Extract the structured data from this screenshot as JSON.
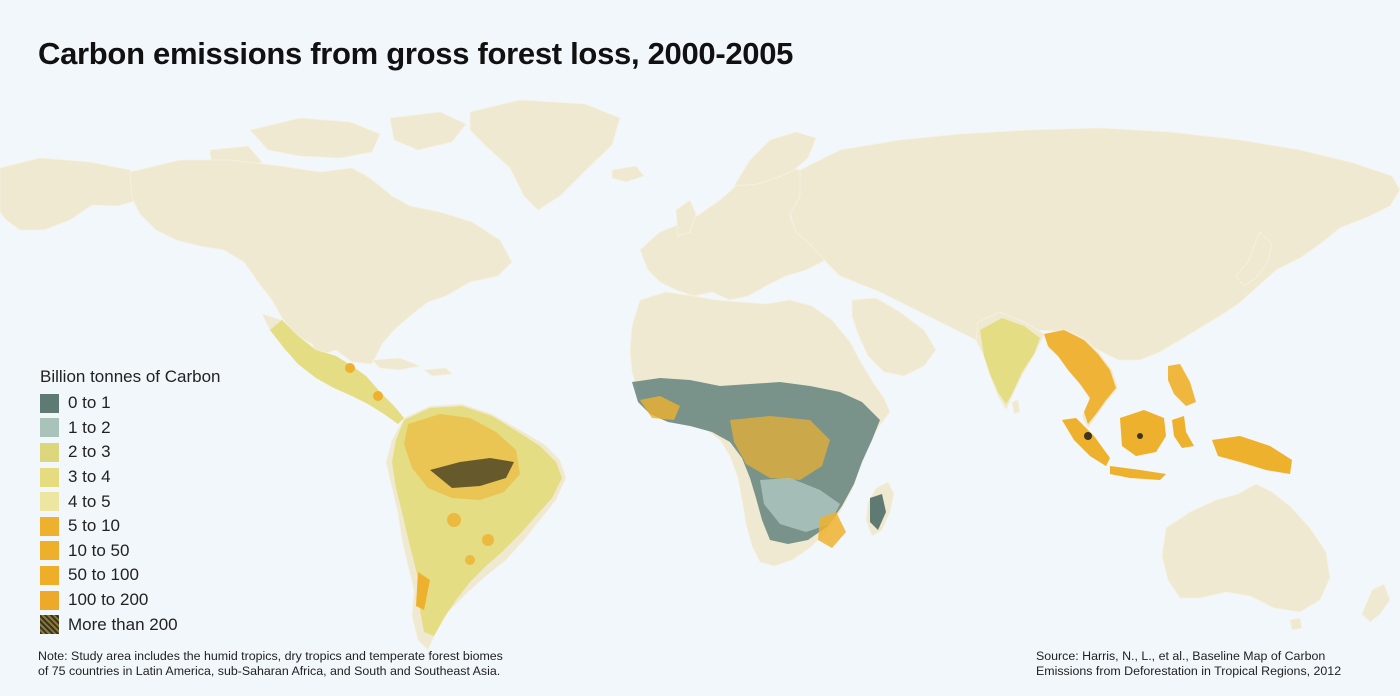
{
  "title": "Carbon emissions from gross forest loss, 2000-2005",
  "legend": {
    "title": "Billion tonnes of Carbon",
    "items": [
      {
        "label": "0 to 1",
        "color": "#5f7a72"
      },
      {
        "label": "1 to 2",
        "color": "#a9c3bb"
      },
      {
        "label": "2 to 3",
        "color": "#dcd67c"
      },
      {
        "label": "3 to 4",
        "color": "#e4dc7e"
      },
      {
        "label": "4 to 5",
        "color": "#ede6a2"
      },
      {
        "label": "5 to 10",
        "color": "#eeb12e"
      },
      {
        "label": "10 to 50",
        "color": "#eeaf2a"
      },
      {
        "label": "50 to 100",
        "color": "#eeae28"
      },
      {
        "label": "100 to 200",
        "color": "#eca92a"
      },
      {
        "label": "More than 200",
        "color": "#3a3520"
      }
    ]
  },
  "note": {
    "line1": "Note: Study area includes the humid tropics, dry tropics and temperate forest biomes",
    "line2": "of 75 countries in Latin America, sub-Saharan Africa, and South and Southeast Asia."
  },
  "source": {
    "line1": "Source: Harris, N., L., et al., Baseline Map of Carbon",
    "line2": "Emissions from Deforestation in Tropical Regions, 2012"
  },
  "colors": {
    "background": "#f2f7fb",
    "land": "#efe9d2",
    "water": "#f2f7fb"
  }
}
